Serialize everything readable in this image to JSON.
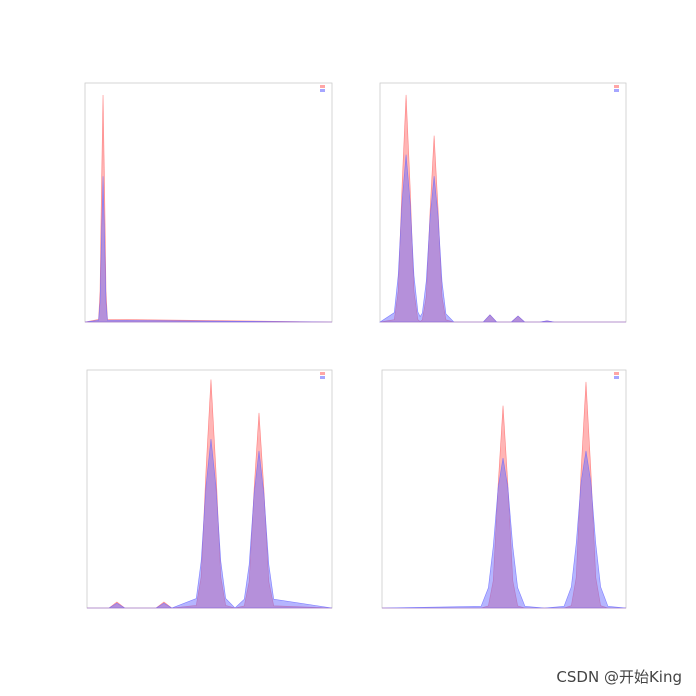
{
  "chart_data": [
    {
      "type": "area",
      "xlim": [
        0,
        100
      ],
      "ylim": [
        0,
        1
      ],
      "x": [
        0,
        5.5,
        6.1,
        6.7,
        7.3,
        7.9,
        8.5,
        9.1,
        100
      ],
      "series": [
        {
          "color": "#ff6b6b",
          "values": [
            0,
            0.011,
            0.129,
            0.576,
            0.95,
            0.576,
            0.129,
            0.011,
            0
          ]
        },
        {
          "color": "#6b6bff",
          "values": [
            0,
            0.007,
            0.083,
            0.37,
            0.61,
            0.37,
            0.083,
            0.007,
            0
          ]
        }
      ]
    },
    {
      "type": "area",
      "xlim": [
        0,
        100
      ],
      "ylim": [
        0,
        1
      ],
      "x": [
        0,
        5.8,
        7.4,
        9.0,
        10.6,
        12.2,
        13.8,
        15.4,
        16.3,
        17.2,
        18.8,
        20.4,
        22.0,
        23.6,
        25.2,
        26.8,
        30,
        42,
        44.7,
        47.4,
        53.4,
        56.1,
        58.8,
        65,
        67.9,
        70.8,
        100
      ],
      "series": [
        {
          "color": "#ff6b6b",
          "values": [
            0,
            0.01,
            0.128,
            0.577,
            0.95,
            0.577,
            0.128,
            0.01,
            0.002,
            0.009,
            0.105,
            0.473,
            0.78,
            0.473,
            0.105,
            0.009,
            0,
            0,
            0.03,
            0,
            0,
            0.025,
            0,
            0,
            0.005,
            0,
            0
          ]
        },
        {
          "color": "#6b6bff",
          "values": [
            0,
            0.039,
            0.195,
            0.508,
            0.7,
            0.508,
            0.195,
            0.042,
            0.023,
            0.037,
            0.17,
            0.443,
            0.61,
            0.443,
            0.17,
            0.034,
            0,
            0,
            0.03,
            0,
            0,
            0.025,
            0,
            0,
            0.005,
            0,
            0
          ]
        }
      ]
    },
    {
      "type": "area",
      "xlim": [
        0,
        100
      ],
      "ylim": [
        0,
        1
      ],
      "x": [
        0,
        9,
        12.2,
        15.4,
        28.2,
        31.4,
        34.6,
        44.6,
        46.6,
        48.6,
        50.6,
        52.6,
        54.6,
        56.6,
        60.4,
        64.2,
        66.2,
        68.2,
        70.2,
        72.2,
        74.2,
        76.2,
        100
      ],
      "series": [
        {
          "color": "#ff6b6b",
          "values": [
            0,
            0,
            0.025,
            0,
            0,
            0.025,
            0,
            0.011,
            0.13,
            0.583,
            0.96,
            0.583,
            0.13,
            0.011,
            0,
            0.009,
            0.111,
            0.498,
            0.82,
            0.498,
            0.111,
            0.009,
            0
          ]
        },
        {
          "color": "#6b6bff",
          "values": [
            0,
            0,
            0.02,
            0,
            0,
            0.02,
            0,
            0.04,
            0.197,
            0.515,
            0.71,
            0.515,
            0.197,
            0.04,
            0,
            0.037,
            0.183,
            0.479,
            0.66,
            0.479,
            0.183,
            0.037,
            0
          ]
        }
      ]
    },
    {
      "type": "area",
      "xlim": [
        0,
        100
      ],
      "ylim": [
        0,
        1
      ],
      "x": [
        0,
        40.6,
        43.6,
        45.6,
        47.6,
        49.6,
        51.6,
        53.6,
        55.6,
        58.6,
        66.6,
        74.6,
        77.6,
        79.6,
        81.6,
        83.6,
        85.6,
        87.6,
        89.6,
        92.6,
        100
      ],
      "series": [
        {
          "color": "#ff6b6b",
          "values": [
            0,
            0,
            0.009,
            0.115,
            0.516,
            0.85,
            0.516,
            0.115,
            0.009,
            0,
            0,
            0,
            0.01,
            0.128,
            0.577,
            0.95,
            0.577,
            0.128,
            0.01,
            0,
            0
          ]
        },
        {
          "color": "#6b6bff",
          "values": [
            0,
            0.007,
            0.085,
            0.259,
            0.505,
            0.63,
            0.505,
            0.259,
            0.085,
            0.007,
            0,
            0.007,
            0.089,
            0.271,
            0.529,
            0.66,
            0.529,
            0.271,
            0.089,
            0.007,
            0
          ]
        }
      ]
    }
  ],
  "watermark": "CSDN @开始King"
}
